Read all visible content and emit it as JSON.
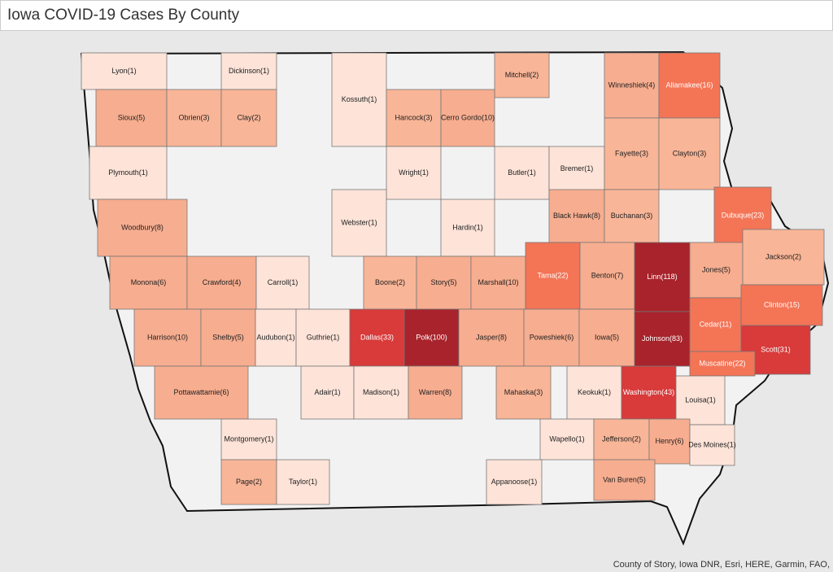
{
  "header": {
    "title": "Iowa COVID-19 Cases By County"
  },
  "map": {
    "counties": [
      {
        "label": "Lyon(1)",
        "cases": 1
      },
      {
        "label": "Dickinson(1)",
        "cases": 1
      },
      {
        "label": "Kossuth(1)",
        "cases": 1
      },
      {
        "label": "Mitchell(2)",
        "cases": 2
      },
      {
        "label": "Winneshiek(4)",
        "cases": 4
      },
      {
        "label": "Allamakee(16)",
        "cases": 16
      },
      {
        "label": "Sioux(5)",
        "cases": 5
      },
      {
        "label": "Obrien(3)",
        "cases": 3
      },
      {
        "label": "Clay(2)",
        "cases": 2
      },
      {
        "label": "Hancock(3)",
        "cases": 3
      },
      {
        "label": "Cerro Gordo(10)",
        "cases": 10
      },
      {
        "label": "Plymouth(1)",
        "cases": 1
      },
      {
        "label": "Wright(1)",
        "cases": 1
      },
      {
        "label": "Butler(1)",
        "cases": 1
      },
      {
        "label": "Bremer(1)",
        "cases": 1
      },
      {
        "label": "Fayette(3)",
        "cases": 3
      },
      {
        "label": "Clayton(3)",
        "cases": 3
      },
      {
        "label": "Webster(1)",
        "cases": 1
      },
      {
        "label": "Hardin(1)",
        "cases": 1
      },
      {
        "label": "Black Hawk(8)",
        "cases": 8
      },
      {
        "label": "Buchanan(3)",
        "cases": 3
      },
      {
        "label": "Dubuque(23)",
        "cases": 23
      },
      {
        "label": "Woodbury(8)",
        "cases": 8
      },
      {
        "label": "Monona(6)",
        "cases": 6
      },
      {
        "label": "Crawford(4)",
        "cases": 4
      },
      {
        "label": "Carroll(1)",
        "cases": 1
      },
      {
        "label": "Boone(2)",
        "cases": 2
      },
      {
        "label": "Story(5)",
        "cases": 5
      },
      {
        "label": "Marshall(10)",
        "cases": 10
      },
      {
        "label": "Tama(22)",
        "cases": 22
      },
      {
        "label": "Benton(7)",
        "cases": 7
      },
      {
        "label": "Linn(118)",
        "cases": 118
      },
      {
        "label": "Jones(5)",
        "cases": 5
      },
      {
        "label": "Jackson(2)",
        "cases": 2
      },
      {
        "label": "Harrison(10)",
        "cases": 10
      },
      {
        "label": "Shelby(5)",
        "cases": 5
      },
      {
        "label": "Audubon(1)",
        "cases": 1
      },
      {
        "label": "Guthrie(1)",
        "cases": 1
      },
      {
        "label": "Dallas(33)",
        "cases": 33
      },
      {
        "label": "Polk(100)",
        "cases": 100
      },
      {
        "label": "Jasper(8)",
        "cases": 8
      },
      {
        "label": "Poweshiek(6)",
        "cases": 6
      },
      {
        "label": "Iowa(5)",
        "cases": 5
      },
      {
        "label": "Johnson(83)",
        "cases": 83
      },
      {
        "label": "Cedar(11)",
        "cases": 11
      },
      {
        "label": "Clinton(15)",
        "cases": 15
      },
      {
        "label": "Scott(31)",
        "cases": 31
      },
      {
        "label": "Muscatine(22)",
        "cases": 22
      },
      {
        "label": "Pottawattamie(6)",
        "cases": 6
      },
      {
        "label": "Adair(1)",
        "cases": 1
      },
      {
        "label": "Madison(1)",
        "cases": 1
      },
      {
        "label": "Warren(8)",
        "cases": 8
      },
      {
        "label": "Mahaska(3)",
        "cases": 3
      },
      {
        "label": "Keokuk(1)",
        "cases": 1
      },
      {
        "label": "Washington(43)",
        "cases": 43
      },
      {
        "label": "Louisa(1)",
        "cases": 1
      },
      {
        "label": "Montgomery(1)",
        "cases": 1
      },
      {
        "label": "Wapello(1)",
        "cases": 1
      },
      {
        "label": "Jefferson(2)",
        "cases": 2
      },
      {
        "label": "Henry(6)",
        "cases": 6
      },
      {
        "label": "Des Moines(1)",
        "cases": 1
      },
      {
        "label": "Page(2)",
        "cases": 2
      },
      {
        "label": "Taylor(1)",
        "cases": 1
      },
      {
        "label": "Appanoose(1)",
        "cases": 1
      },
      {
        "label": "Van Buren(5)",
        "cases": 5
      }
    ],
    "attribution": "County of Story, Iowa DNR, Esri, HERE, Garmin, FAO,"
  }
}
